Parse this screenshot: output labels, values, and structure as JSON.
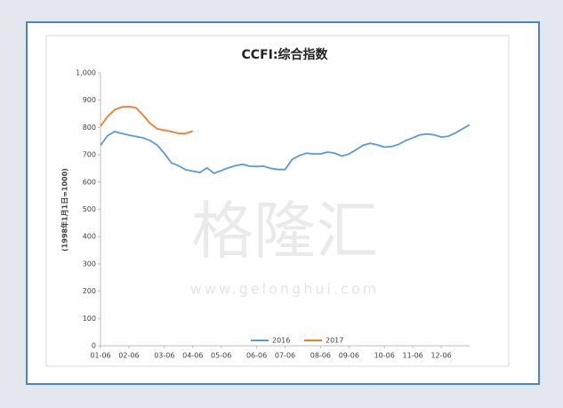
{
  "chart_data": {
    "type": "line",
    "title": "CCFI:综合指数",
    "y_label": "(1998年1月1日=1000)",
    "watermark": "格隆汇",
    "watermark_url": "www.gelonghui.com",
    "categories": [
      "01-06",
      null,
      null,
      null,
      "02-06",
      null,
      null,
      null,
      null,
      "03-06",
      null,
      null,
      null,
      "04-06",
      null,
      null,
      null,
      "05-06",
      null,
      null,
      null,
      null,
      "06-06",
      null,
      null,
      null,
      "07-06",
      null,
      null,
      null,
      null,
      "08-06",
      null,
      null,
      null,
      "09-06",
      null,
      null,
      null,
      null,
      "10-06",
      null,
      null,
      null,
      "11-06",
      null,
      null,
      null,
      "12-06",
      null,
      null,
      null,
      null
    ],
    "series": [
      {
        "name": "2016",
        "color": "#5b9bd5",
        "values": [
          735,
          770,
          785,
          778,
          772,
          767,
          762,
          752,
          735,
          705,
          670,
          660,
          645,
          640,
          635,
          652,
          632,
          642,
          652,
          660,
          665,
          658,
          657,
          658,
          650,
          646,
          646,
          683,
          697,
          706,
          703,
          703,
          710,
          706,
          695,
          703,
          718,
          735,
          742,
          736,
          728,
          730,
          738,
          752,
          762,
          773,
          776,
          773,
          765,
          768,
          780,
          795,
          810
        ]
      },
      {
        "name": "2017",
        "color": "#ed7d31",
        "values": [
          805,
          840,
          865,
          875,
          877,
          872,
          845,
          815,
          795,
          790,
          785,
          778,
          778,
          787,
          null,
          null,
          null,
          null,
          null,
          null,
          null,
          null,
          null,
          null,
          null,
          null,
          null,
          null,
          null,
          null,
          null,
          null,
          null,
          null,
          null,
          null,
          null,
          null,
          null,
          null,
          null,
          null,
          null,
          null,
          null,
          null,
          null,
          null,
          null,
          null,
          null,
          null,
          null
        ]
      }
    ],
    "ylim": [
      0,
      1000
    ],
    "yticks": [
      0,
      100,
      200,
      300,
      400,
      500,
      600,
      700,
      800,
      900,
      {
        "value": 1000,
        "label": "1,000"
      }
    ],
    "legend": "bottom"
  }
}
